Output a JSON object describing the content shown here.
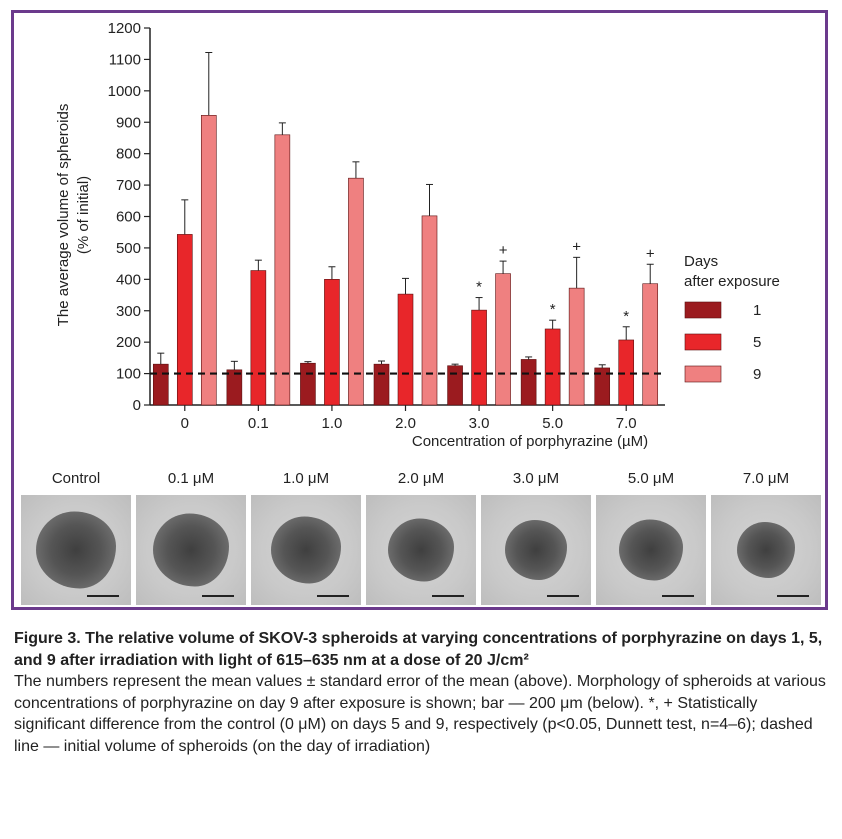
{
  "chart_data": {
    "type": "bar",
    "xlabel": "Concentration of porphyrazine (µM)",
    "ylabel_line1": "The average volume of spheroids",
    "ylabel_line2": "(% of initial)",
    "ylim": [
      0,
      1200
    ],
    "yticks": [
      0,
      100,
      200,
      300,
      400,
      500,
      600,
      700,
      800,
      900,
      1000,
      1100,
      1200
    ],
    "categories": [
      "0",
      "0.1",
      "1.0",
      "2.0",
      "3.0",
      "5.0",
      "7.0"
    ],
    "legend_title_line1": "Days",
    "legend_title_line2": "after exposure",
    "legend_placement": "right",
    "baseline": 100,
    "series": [
      {
        "name": "1",
        "color": "#9b1b1f",
        "values": [
          130,
          112,
          133,
          130,
          125,
          145,
          118
        ],
        "errors": [
          35,
          27,
          5,
          10,
          5,
          8,
          10
        ],
        "marks": [
          "",
          "",
          "",
          "",
          "",
          "",
          ""
        ]
      },
      {
        "name": "5",
        "color": "#e8262a",
        "values": [
          543,
          428,
          400,
          353,
          302,
          242,
          207
        ],
        "errors": [
          110,
          33,
          40,
          50,
          40,
          28,
          42
        ],
        "marks": [
          "",
          "",
          "",
          "",
          "*",
          "*",
          "*"
        ]
      },
      {
        "name": "9",
        "color": "#ef8080",
        "values": [
          922,
          860,
          722,
          602,
          418,
          372,
          386
        ],
        "errors": [
          200,
          38,
          52,
          100,
          40,
          98,
          62
        ],
        "marks": [
          "",
          "",
          "",
          "",
          "+",
          "+",
          "+"
        ]
      }
    ]
  },
  "photos": [
    {
      "label": "Control",
      "size": 1.0
    },
    {
      "label": "0.1 μM",
      "size": 0.95
    },
    {
      "label": "1.0 μM",
      "size": 0.88
    },
    {
      "label": "2.0 μM",
      "size": 0.82
    },
    {
      "label": "3.0 μM",
      "size": 0.78
    },
    {
      "label": "5.0 μM",
      "size": 0.8
    },
    {
      "label": "7.0 μM",
      "size": 0.72
    }
  ],
  "caption": {
    "title": "Figure 3. The relative volume of SKOV-3 spheroids at varying concentrations of porphyrazine on days 1, 5, and 9 after irradiation with light of 615–635 nm at a dose of 20 J/cm²",
    "body": "The numbers represent the mean values ± standard error of the mean (above). Morphology of spheroids at various concentrations of porphyrazine on day 9 after exposure is shown; bar — 200 μm (below). *, + Statistically significant difference from the control (0 μM) on days 5 and 9, respectively (p<0.05, Dunnett test, n=4–6); dashed line — initial volume of spheroids (on the day of irradiation)"
  }
}
